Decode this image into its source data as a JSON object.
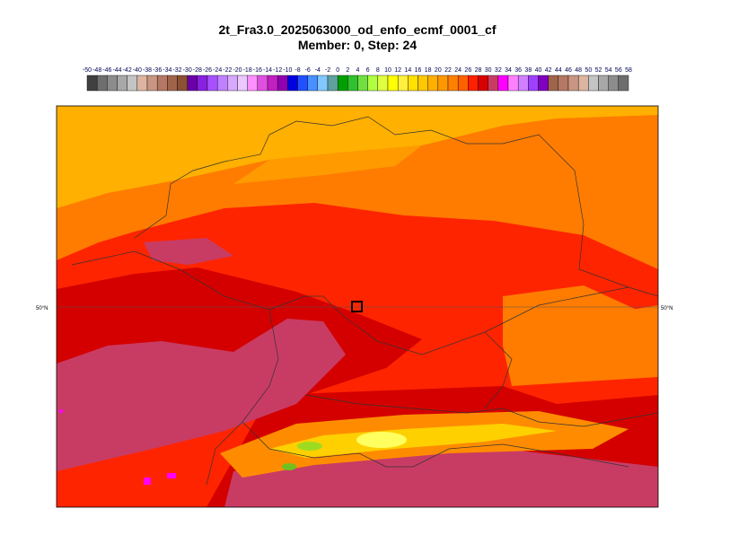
{
  "header": {
    "title": "2t_Fra3.0_2025063000_od_enfo_ecmf_0001_cf",
    "subtitle": "Member: 0, Step: 24"
  },
  "colorbar": {
    "labels": [
      -50,
      -48,
      -46,
      -44,
      -42,
      -40,
      -38,
      -36,
      -34,
      -32,
      -30,
      -28,
      -26,
      -24,
      -22,
      -20,
      -18,
      -16,
      -14,
      -12,
      -10,
      -8,
      -6,
      -4,
      -2,
      0,
      2,
      4,
      6,
      8,
      10,
      12,
      14,
      16,
      18,
      20,
      22,
      24,
      26,
      28,
      30,
      32,
      34,
      36,
      38,
      40,
      42,
      44,
      46,
      48,
      50,
      52,
      54,
      56,
      58
    ],
    "colors": [
      "#404040",
      "#6e6e6e",
      "#8c8c8c",
      "#a8a8a8",
      "#c4c4c4",
      "#dcb4a0",
      "#c89682",
      "#b47864",
      "#a0644b",
      "#8c5032",
      "#6a00a8",
      "#8a20e0",
      "#a850ff",
      "#c080ff",
      "#d8a8ff",
      "#ecc8ff",
      "#ff90ff",
      "#e050e0",
      "#c020c0",
      "#9000b0",
      "#0000e0",
      "#2050ff",
      "#4890ff",
      "#80c8ff",
      "#60a0a0",
      "#00a000",
      "#30c030",
      "#70e040",
      "#b0ff40",
      "#e0ff40",
      "#ffff00",
      "#fff040",
      "#ffe000",
      "#ffc800",
      "#ffb000",
      "#ff9800",
      "#ff8000",
      "#ff6000",
      "#ff2000",
      "#d80000",
      "#c83c64",
      "#ff00ff",
      "#ff80ff",
      "#d080ff",
      "#a040ff",
      "#8000c0",
      "#a0644b",
      "#b47864",
      "#c89682",
      "#dcb4a0",
      "#c4c4c4",
      "#a8a8a8",
      "#8c8c8c",
      "#6e6e6e"
    ]
  },
  "map": {
    "lat_label_left": "50°N",
    "lat_label_right": "50°N"
  }
}
